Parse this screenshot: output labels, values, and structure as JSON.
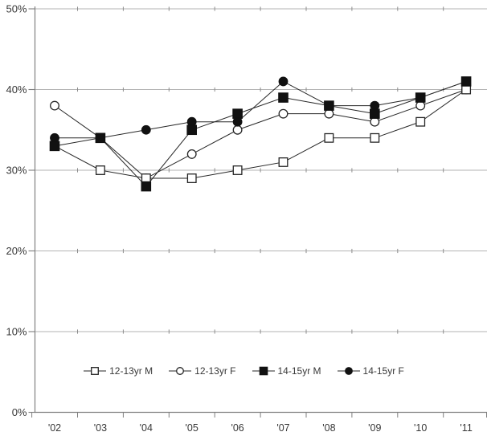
{
  "chart_data": {
    "type": "line",
    "title": "",
    "xlabel": "",
    "ylabel": "",
    "categories": [
      "'02",
      "'03",
      "'04",
      "'05",
      "'06",
      "'07",
      "'08",
      "'09",
      "'10",
      "'11"
    ],
    "y_tick_labels": [
      "0%",
      "10%",
      "20%",
      "30%",
      "40%",
      "50%"
    ],
    "ylim": [
      0,
      50
    ],
    "grid": true,
    "legend_position": "bottom-center",
    "series": [
      {
        "name": "12-13yr M",
        "marker": "square-open",
        "values": [
          33,
          30,
          29,
          29,
          30,
          31,
          34,
          34,
          36,
          40
        ]
      },
      {
        "name": "12-13yr F",
        "marker": "circle-open",
        "values": [
          38,
          34,
          29,
          32,
          35,
          37,
          37,
          36,
          38,
          40
        ]
      },
      {
        "name": "14-15yr M",
        "marker": "square-filled",
        "values": [
          33,
          34,
          28,
          35,
          37,
          39,
          38,
          37,
          39,
          41
        ]
      },
      {
        "name": "14-15yr F",
        "marker": "circle-filled",
        "values": [
          34,
          34,
          35,
          36,
          36,
          41,
          38,
          38,
          39,
          41
        ]
      }
    ],
    "colors": {
      "series_stroke": "#262626",
      "marker_fill_dark": "#111111",
      "marker_fill_open": "#ffffff",
      "gridline": "#b3b3b3",
      "grid_nub": "#8c8c8c",
      "axis": "#7f7f7f",
      "text": "#383838"
    }
  }
}
